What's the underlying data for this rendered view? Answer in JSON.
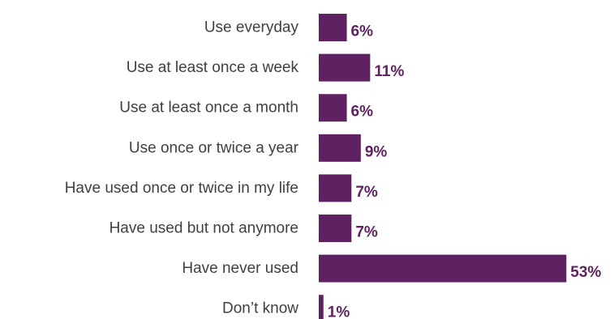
{
  "chart_data": {
    "type": "bar",
    "orientation": "horizontal",
    "categories": [
      "Use everyday",
      "Use at least once a week",
      "Use at least once a month",
      "Use once or twice a year",
      "Have used once or twice in my life",
      "Have used but not anymore",
      "Have never used",
      "Don’t know"
    ],
    "values": [
      6,
      11,
      6,
      9,
      7,
      7,
      53,
      1
    ],
    "value_labels": [
      "6%",
      "11%",
      "6%",
      "9%",
      "7%",
      "7%",
      "53%",
      "1%"
    ],
    "unit": "%",
    "title": "",
    "xlabel": "",
    "ylabel": "",
    "xlim": [
      0,
      53
    ],
    "grid": false,
    "legend": "none",
    "bar_color": "#5f2161",
    "label_color": "#404040"
  }
}
